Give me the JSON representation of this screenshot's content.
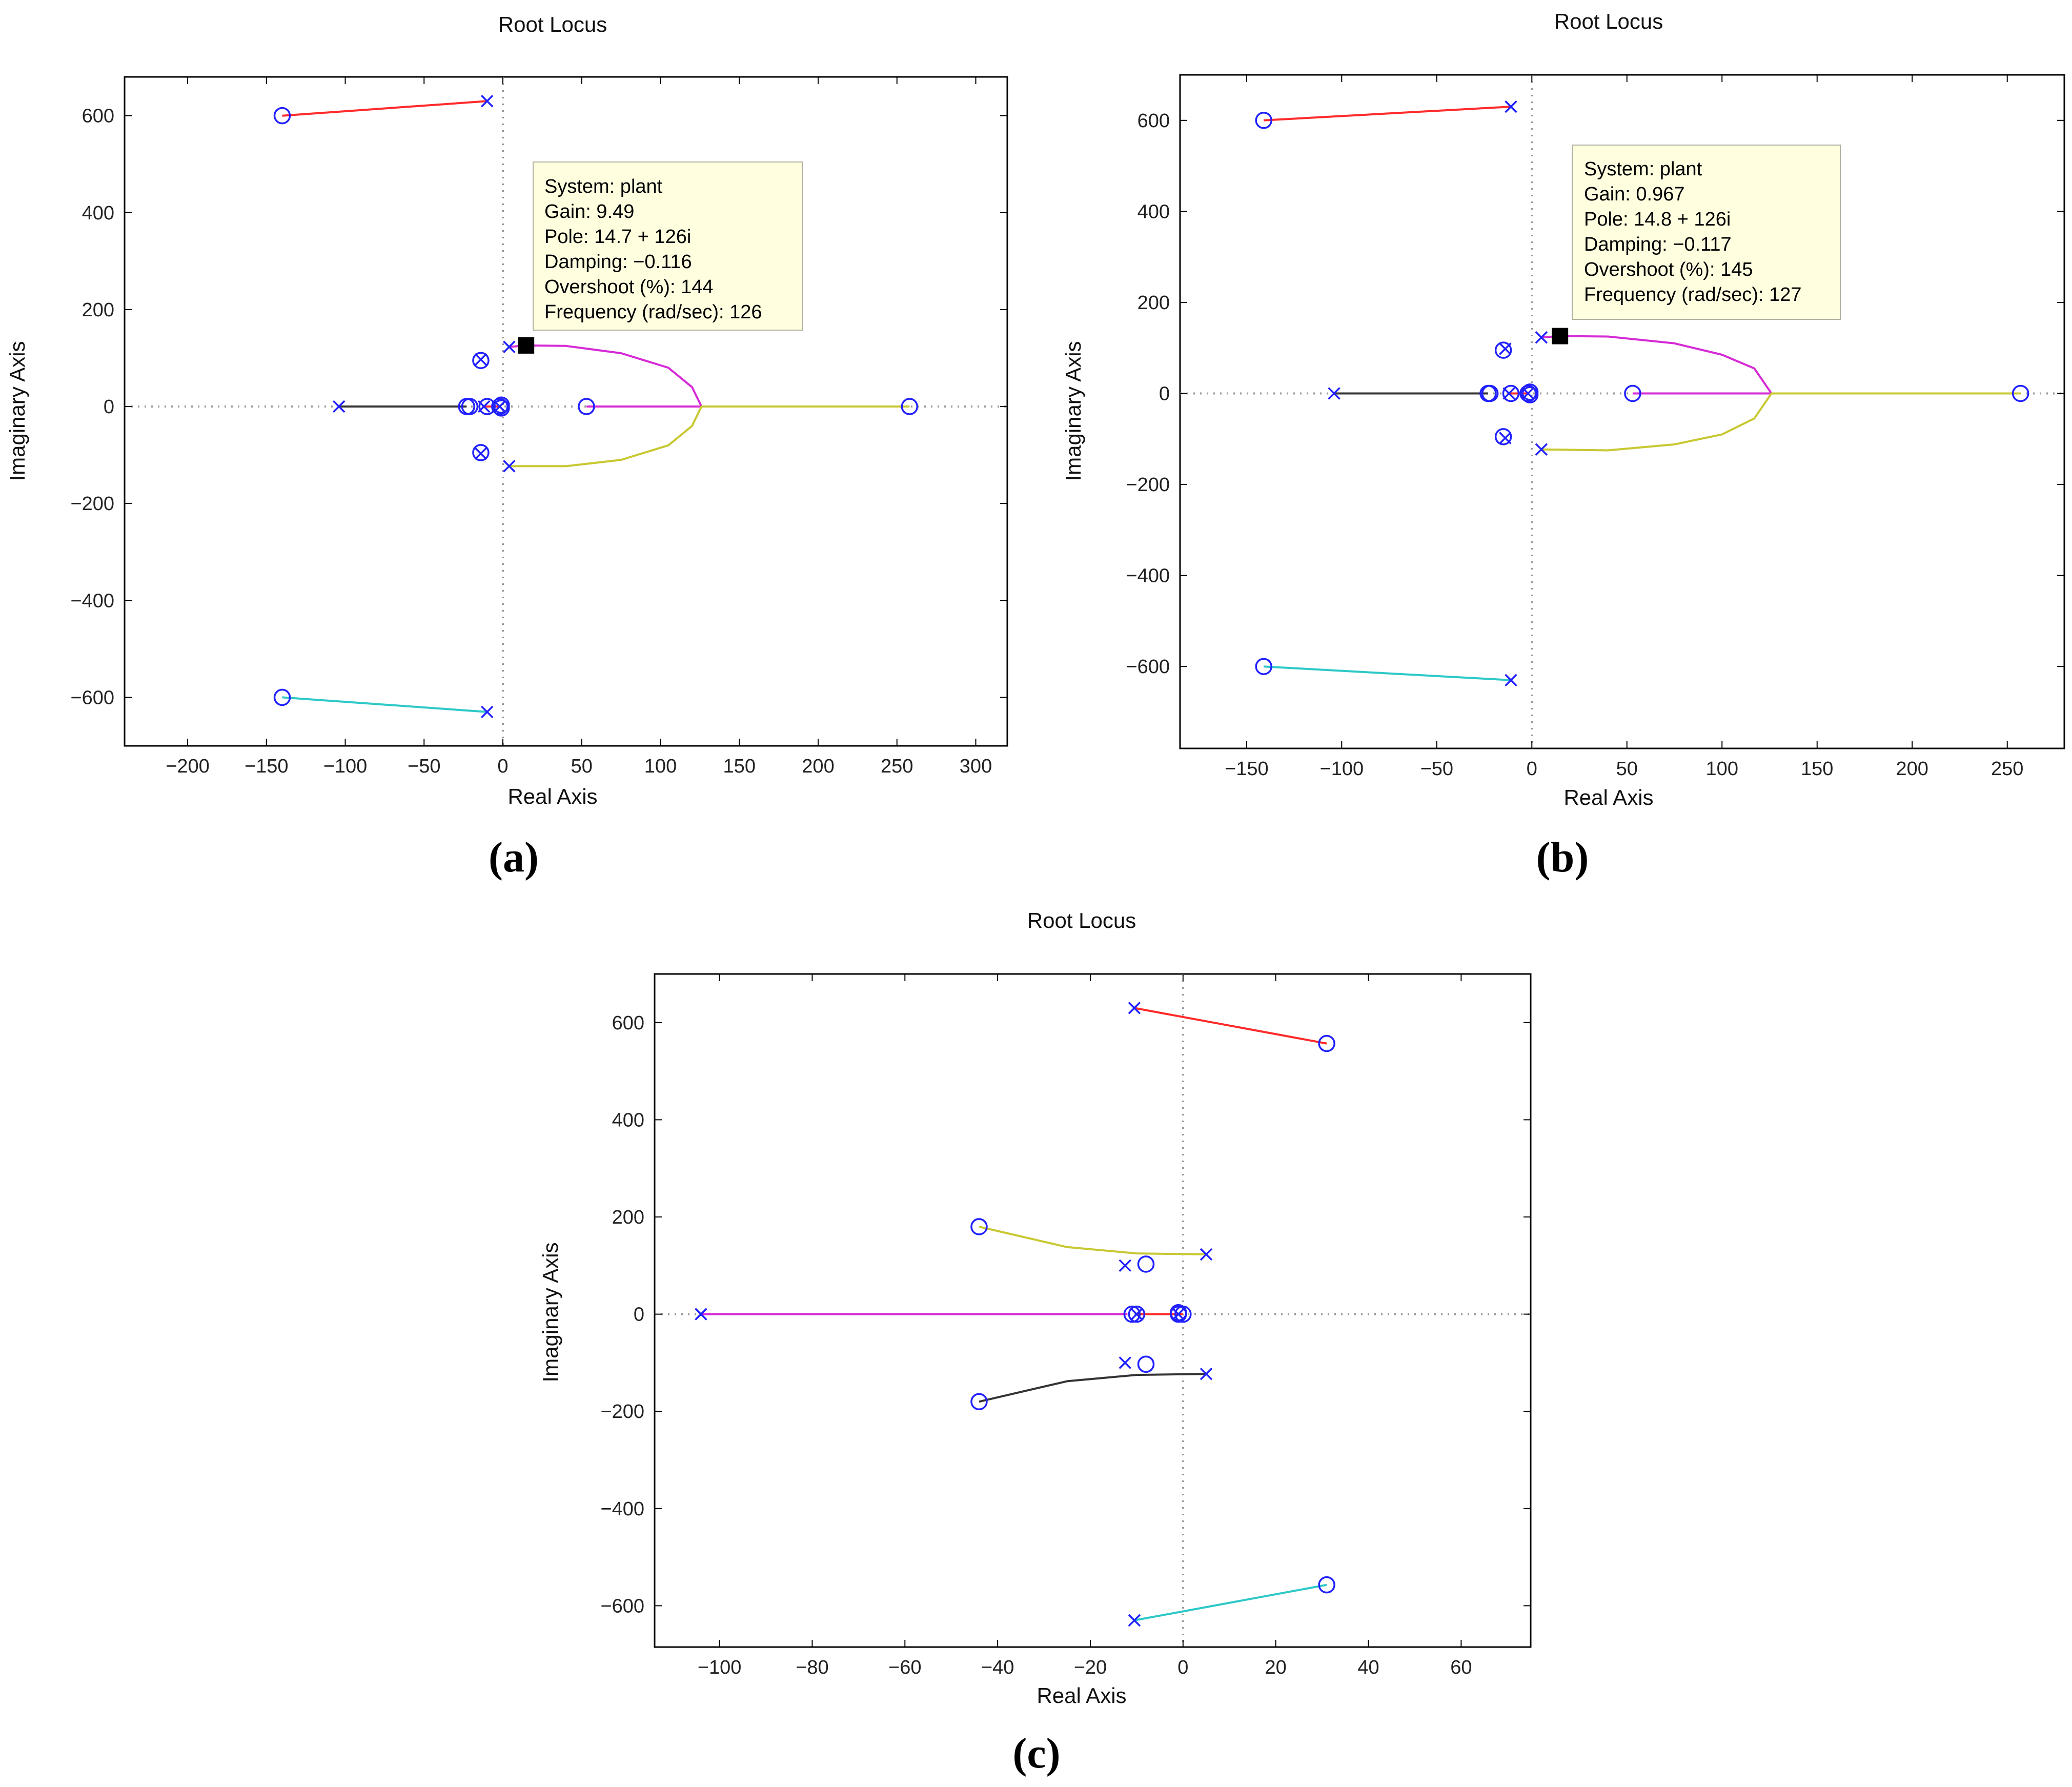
{
  "chart_data": [
    {
      "id": "a",
      "type": "line",
      "panel_label": "a",
      "title": "Root Locus",
      "xlabel": "Real Axis",
      "ylabel": "Imaginary Axis",
      "xlim": [
        -240,
        320
      ],
      "ylim": [
        -700,
        680
      ],
      "xticks": [
        -200,
        -150,
        -100,
        -50,
        0,
        50,
        100,
        150,
        200,
        250,
        300
      ],
      "yticks": [
        -600,
        -400,
        -200,
        0,
        200,
        400,
        600
      ],
      "tick_labels_x": [
        "−200",
        "−150",
        "−100",
        "−50",
        "0",
        "50",
        "100",
        "150",
        "200",
        "250",
        "300"
      ],
      "tick_labels_y": [
        "−600",
        "−400",
        "−200",
        "0",
        "200",
        "400",
        "600"
      ],
      "series": [
        {
          "name": "branch-red",
          "color": "#ff2a2a",
          "points": [
            [
              -10,
              630
            ],
            [
              -140,
              600
            ]
          ]
        },
        {
          "name": "branch-cyan",
          "color": "#2ec8c8",
          "points": [
            [
              -10,
              -630
            ],
            [
              -140,
              -600
            ]
          ]
        },
        {
          "name": "branch-black",
          "color": "#333333",
          "points": [
            [
              -104,
              0
            ],
            [
              -35,
              0
            ],
            [
              -23,
              0
            ]
          ]
        },
        {
          "name": "branch-red-small",
          "color": "#ff2a2a",
          "points": [
            [
              -13,
              0
            ],
            [
              -3,
              0
            ]
          ]
        },
        {
          "name": "branch-magenta",
          "color": "#d62ad6",
          "points": [
            [
              4,
              123
            ],
            [
              14.7,
              126
            ],
            [
              40,
              125
            ],
            [
              75,
              110
            ],
            [
              105,
              80
            ],
            [
              120,
              40
            ],
            [
              126,
              0
            ],
            [
              53,
              0
            ]
          ]
        },
        {
          "name": "branch-yellow",
          "color": "#c8c832",
          "points": [
            [
              4,
              -123
            ],
            [
              40,
              -123
            ],
            [
              75,
              -110
            ],
            [
              105,
              -80
            ],
            [
              120,
              -40
            ],
            [
              126,
              0
            ],
            [
              258,
              0
            ]
          ]
        }
      ],
      "poles": [
        [
          -10,
          630
        ],
        [
          -10,
          -630
        ],
        [
          4,
          123
        ],
        [
          4,
          -123
        ],
        [
          -104,
          0
        ],
        [
          -14,
          97
        ],
        [
          -14,
          -97
        ],
        [
          -12,
          0
        ],
        [
          -2,
          0
        ]
      ],
      "zeros": [
        [
          -140,
          600
        ],
        [
          -140,
          -600
        ],
        [
          -14,
          95
        ],
        [
          -14,
          -95
        ],
        [
          -23,
          0
        ],
        [
          -21,
          0
        ],
        [
          -10,
          0
        ],
        [
          -2,
          0
        ],
        [
          -1,
          3
        ],
        [
          -1,
          -3
        ],
        [
          53,
          0
        ],
        [
          258,
          0
        ]
      ],
      "marker": [
        14.7,
        126
      ],
      "datatip": {
        "system": "System: plant",
        "gain": "Gain: 9.49",
        "pole": "Pole: 14.7 + 126i",
        "damping": "Damping: −0.116",
        "overshoot": "Overshoot (%): 144",
        "frequency": "Frequency (rad/sec): 126"
      }
    },
    {
      "id": "b",
      "type": "line",
      "panel_label": "b",
      "title": "Root Locus",
      "xlabel": "Real Axis",
      "ylabel": "Imaginary Axis",
      "xlim": [
        -185,
        280
      ],
      "ylim": [
        -780,
        700
      ],
      "xticks": [
        -150,
        -100,
        -50,
        0,
        50,
        100,
        150,
        200,
        250
      ],
      "yticks": [
        -600,
        -400,
        -200,
        0,
        200,
        400,
        600
      ],
      "tick_labels_x": [
        "−150",
        "−100",
        "−50",
        "0",
        "50",
        "100",
        "150",
        "200",
        "250"
      ],
      "tick_labels_y": [
        "−600",
        "−400",
        "−200",
        "0",
        "200",
        "400",
        "600"
      ],
      "series": [
        {
          "name": "branch-red",
          "color": "#ff2a2a",
          "points": [
            [
              -11,
              630
            ],
            [
              -141,
              600
            ]
          ]
        },
        {
          "name": "branch-cyan",
          "color": "#2ec8c8",
          "points": [
            [
              -11,
              -630
            ],
            [
              -141,
              -600
            ]
          ]
        },
        {
          "name": "branch-black",
          "color": "#333333",
          "points": [
            [
              -104,
              0
            ],
            [
              -35,
              0
            ],
            [
              -23,
              0
            ]
          ]
        },
        {
          "name": "branch-red-small",
          "color": "#ff2a2a",
          "points": [
            [
              -12,
              0
            ],
            [
              -2,
              0
            ]
          ]
        },
        {
          "name": "branch-magenta",
          "color": "#d62ad6",
          "points": [
            [
              5,
              123
            ],
            [
              14.8,
              126
            ],
            [
              40,
              125
            ],
            [
              75,
              110
            ],
            [
              100,
              85
            ],
            [
              117,
              55
            ],
            [
              126,
              0
            ],
            [
              53,
              0
            ]
          ]
        },
        {
          "name": "branch-yellow",
          "color": "#c8c832",
          "points": [
            [
              5,
              -123
            ],
            [
              40,
              -125
            ],
            [
              75,
              -112
            ],
            [
              100,
              -90
            ],
            [
              117,
              -55
            ],
            [
              126,
              0
            ],
            [
              257,
              0
            ]
          ]
        }
      ],
      "poles": [
        [
          -11,
          630
        ],
        [
          -11,
          -630
        ],
        [
          5,
          123
        ],
        [
          5,
          -123
        ],
        [
          -104,
          0
        ],
        [
          -14,
          98
        ],
        [
          -14,
          -98
        ],
        [
          -12,
          0
        ],
        [
          -2,
          0
        ]
      ],
      "zeros": [
        [
          -141,
          600
        ],
        [
          -141,
          -600
        ],
        [
          -15,
          95
        ],
        [
          -15,
          -95
        ],
        [
          -23,
          0
        ],
        [
          -22,
          0
        ],
        [
          -11,
          0
        ],
        [
          -2,
          0
        ],
        [
          -1,
          3
        ],
        [
          -1,
          -3
        ],
        [
          53,
          0
        ],
        [
          257,
          0
        ]
      ],
      "marker": [
        14.8,
        126
      ],
      "datatip": {
        "system": "System: plant",
        "gain": "Gain: 0.967",
        "pole": "Pole: 14.8 + 126i",
        "damping": "Damping: −0.117",
        "overshoot": "Overshoot (%): 145",
        "frequency": "Frequency (rad/sec): 127"
      }
    },
    {
      "id": "c",
      "type": "line",
      "panel_label": "c",
      "title": "Root Locus",
      "xlabel": "Real Axis",
      "ylabel": "Imaginary Axis",
      "xlim": [
        -114,
        75
      ],
      "ylim": [
        -685,
        700
      ],
      "xticks": [
        -100,
        -80,
        -60,
        -40,
        -20,
        0,
        20,
        40,
        60
      ],
      "yticks": [
        -600,
        -400,
        -200,
        0,
        200,
        400,
        600
      ],
      "tick_labels_x": [
        "−100",
        "−80",
        "−60",
        "−40",
        "−20",
        "0",
        "20",
        "40",
        "60"
      ],
      "tick_labels_y": [
        "−600",
        "−400",
        "−200",
        "0",
        "200",
        "400",
        "600"
      ],
      "series": [
        {
          "name": "branch-red",
          "color": "#ff2a2a",
          "points": [
            [
              -10.5,
              630
            ],
            [
              31,
              557
            ]
          ]
        },
        {
          "name": "branch-cyan",
          "color": "#2ec8c8",
          "points": [
            [
              -10.5,
              -630
            ],
            [
              31,
              -557
            ]
          ]
        },
        {
          "name": "branch-yellow",
          "color": "#c8c832",
          "points": [
            [
              5,
              123
            ],
            [
              -10,
              125
            ],
            [
              -25,
              138
            ],
            [
              -44,
              180
            ]
          ]
        },
        {
          "name": "branch-black",
          "color": "#333333",
          "points": [
            [
              5,
              -123
            ],
            [
              -10,
              -125
            ],
            [
              -25,
              -138
            ],
            [
              -44,
              -180
            ]
          ]
        },
        {
          "name": "branch-magenta",
          "color": "#d62ad6",
          "points": [
            [
              -104,
              0
            ],
            [
              -12,
              0
            ]
          ]
        },
        {
          "name": "branch-red-small",
          "color": "#ff2a2a",
          "points": [
            [
              -10,
              0
            ],
            [
              0,
              0
            ]
          ]
        }
      ],
      "poles": [
        [
          -10.5,
          630
        ],
        [
          -10.5,
          -630
        ],
        [
          5,
          123
        ],
        [
          5,
          -123
        ],
        [
          -104,
          0
        ],
        [
          -12.5,
          100
        ],
        [
          -12.5,
          -100
        ],
        [
          -10,
          0
        ],
        [
          -1,
          0
        ]
      ],
      "zeros": [
        [
          31,
          557
        ],
        [
          31,
          -557
        ],
        [
          -44,
          180
        ],
        [
          -44,
          -180
        ],
        [
          -8,
          103
        ],
        [
          -8,
          -103
        ],
        [
          -11,
          0
        ],
        [
          -10,
          0
        ],
        [
          -1,
          0
        ],
        [
          0,
          0
        ],
        [
          -1,
          3
        ]
      ],
      "marker": null,
      "datatip": null
    }
  ]
}
